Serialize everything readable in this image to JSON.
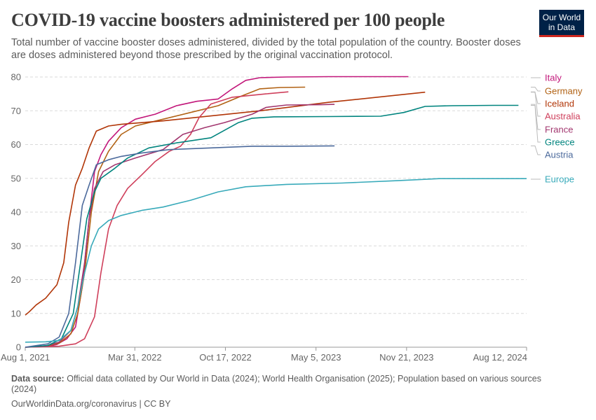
{
  "header": {
    "title": "COVID-19 vaccine boosters administered per 100 people",
    "subtitle": "Total number of vaccine booster doses administered, divided by the total population of the country. Booster doses are doses administered beyond those prescribed by the original vaccination protocol.",
    "logo_line1": "Our World",
    "logo_line2": "in Data"
  },
  "footer": {
    "source_label": "Data source:",
    "source_text": "Official data collated by Our World in Data (2024); World Health Organisation (2025); Population based on various sources (2024)",
    "url_text": "OurWorldinData.org/coronavirus | CC BY"
  },
  "chart_data": {
    "type": "line",
    "title": "COVID-19 vaccine boosters administered per 100 people",
    "ylim": [
      0,
      80
    ],
    "yticks": [
      0,
      10,
      20,
      30,
      40,
      50,
      60,
      70,
      80
    ],
    "xlim": [
      "2021-08-01",
      "2024-08-12"
    ],
    "xticks": [
      "2021-08-01",
      "2022-03-31",
      "2022-10-17",
      "2023-05-05",
      "2023-11-21",
      "2024-08-12"
    ],
    "xtick_labels": [
      "Aug 1, 2021",
      "Mar 31, 2022",
      "Oct 17, 2022",
      "May 5, 2023",
      "Nov 21, 2023",
      "Aug 12, 2024"
    ],
    "grid": "horizontal dashed",
    "legend": "right, labels at line ends",
    "series": [
      {
        "name": "Italy",
        "color": "#c2177a",
        "x": [
          "2021-08-01",
          "2021-09-20",
          "2021-10-10",
          "2021-11-01",
          "2021-11-20",
          "2021-12-05",
          "2021-12-20",
          "2022-01-01",
          "2022-01-15",
          "2022-02-01",
          "2022-03-01",
          "2022-04-01",
          "2022-05-15",
          "2022-07-01",
          "2022-08-15",
          "2022-10-01",
          "2022-11-01",
          "2022-12-01",
          "2023-01-01",
          "2023-03-01",
          "2023-06-01",
          "2023-11-25"
        ],
        "values": [
          0.0,
          0.2,
          0.8,
          2.5,
          6,
          18,
          38,
          52,
          57,
          61,
          65,
          67.5,
          69,
          71.5,
          72.8,
          73.5,
          76.5,
          79,
          79.8,
          80,
          80.1,
          80.1
        ]
      },
      {
        "name": "Germany",
        "color": "#b16214",
        "x": [
          "2021-08-01",
          "2021-09-15",
          "2021-10-15",
          "2021-11-10",
          "2021-11-25",
          "2021-12-10",
          "2021-12-25",
          "2022-01-10",
          "2022-02-01",
          "2022-03-01",
          "2022-04-01",
          "2022-06-01",
          "2022-08-01",
          "2022-10-01",
          "2022-11-15",
          "2023-01-01",
          "2023-02-15",
          "2023-04-11"
        ],
        "values": [
          0.0,
          0.3,
          1.2,
          4,
          10,
          22,
          40,
          52,
          58,
          63,
          65.5,
          67.5,
          69.5,
          71.5,
          74,
          76.5,
          76.9,
          77.0
        ]
      },
      {
        "name": "Iceland",
        "color": "#b13507",
        "x": [
          "2021-08-01",
          "2021-08-10",
          "2021-08-25",
          "2021-09-15",
          "2021-10-10",
          "2021-10-25",
          "2021-11-05",
          "2021-11-20",
          "2021-12-05",
          "2021-12-20",
          "2022-01-05",
          "2022-02-01",
          "2022-03-01",
          "2022-06-01",
          "2023-01-01",
          "2023-06-01",
          "2024-01-01"
        ],
        "values": [
          9.5,
          10.5,
          12.5,
          14.5,
          18.5,
          25,
          37,
          48,
          53,
          59,
          64,
          65.5,
          66,
          67,
          70,
          72.5,
          75.5
        ]
      },
      {
        "name": "Australia",
        "color": "#cf3f5b",
        "x": [
          "2021-08-01",
          "2021-10-15",
          "2021-11-20",
          "2021-12-10",
          "2022-01-01",
          "2022-01-15",
          "2022-02-01",
          "2022-02-20",
          "2022-03-15",
          "2022-04-15",
          "2022-05-15",
          "2022-06-15",
          "2022-07-10",
          "2022-08-01",
          "2022-08-20",
          "2022-09-15",
          "2022-11-01",
          "2023-01-15",
          "2023-03-05"
        ],
        "values": [
          0.0,
          0.3,
          1,
          2.5,
          9,
          22,
          35,
          42,
          47,
          51,
          55,
          58,
          59.5,
          63,
          68,
          72,
          74,
          75,
          75.6
        ]
      },
      {
        "name": "France",
        "color": "#a2376f",
        "x": [
          "2021-08-01",
          "2021-09-15",
          "2021-10-15",
          "2021-11-10",
          "2021-11-25",
          "2021-12-10",
          "2021-12-20",
          "2022-01-01",
          "2022-01-20",
          "2022-02-15",
          "2022-04-01",
          "2022-06-01",
          "2022-07-15",
          "2022-09-01",
          "2022-10-15",
          "2022-12-15",
          "2023-01-15",
          "2023-03-01",
          "2023-05-15",
          "2023-06-15"
        ],
        "values": [
          0.0,
          0.4,
          1.5,
          5,
          12,
          25,
          38,
          47,
          52,
          54,
          56,
          58.5,
          63,
          65,
          66.5,
          69,
          71,
          71.7,
          71.8,
          71.9
        ]
      },
      {
        "name": "Greece",
        "color": "#00847e",
        "x": [
          "2021-08-01",
          "2021-09-20",
          "2021-10-20",
          "2021-11-15",
          "2021-11-30",
          "2021-12-15",
          "2022-01-01",
          "2022-01-15",
          "2022-02-15",
          "2022-03-15",
          "2022-05-01",
          "2022-07-01",
          "2022-09-15",
          "2022-11-15",
          "2022-12-15",
          "2023-02-01",
          "2023-06-01",
          "2023-09-25",
          "2023-11-15",
          "2024-01-01",
          "2024-03-01",
          "2024-06-01",
          "2024-07-25"
        ],
        "values": [
          0.0,
          0.5,
          2.5,
          10,
          24,
          38,
          46,
          50,
          53,
          56,
          59,
          60.5,
          62,
          66.5,
          67.8,
          68.2,
          68.3,
          68.4,
          69.5,
          71.3,
          71.5,
          71.6,
          71.6
        ]
      },
      {
        "name": "Austria",
        "color": "#4c6a9c",
        "x": [
          "2021-08-01",
          "2021-09-20",
          "2021-10-15",
          "2021-11-05",
          "2021-11-20",
          "2021-12-05",
          "2021-12-20",
          "2022-01-05",
          "2022-02-01",
          "2022-03-01",
          "2022-04-15",
          "2022-06-15",
          "2022-09-15",
          "2022-12-15",
          "2023-03-01",
          "2023-06-15"
        ],
        "values": [
          0.0,
          1,
          3,
          10,
          25,
          42,
          48,
          54,
          55.5,
          56.5,
          57.5,
          58.5,
          59,
          59.5,
          59.5,
          59.6
        ]
      },
      {
        "name": "Europe",
        "color": "#38aaba",
        "x": [
          "2021-08-01",
          "2021-09-15",
          "2021-10-15",
          "2021-11-10",
          "2021-11-25",
          "2021-12-10",
          "2021-12-25",
          "2022-01-10",
          "2022-02-01",
          "2022-03-01",
          "2022-04-15",
          "2022-06-01",
          "2022-08-01",
          "2022-10-01",
          "2022-12-01",
          "2023-03-01",
          "2023-07-01",
          "2023-11-01",
          "2024-02-01",
          "2024-08-12"
        ],
        "values": [
          1.5,
          1.6,
          2,
          5,
          12,
          22,
          30,
          35,
          37.5,
          39,
          40.5,
          41.5,
          43.5,
          46,
          47.5,
          48.2,
          48.6,
          49.3,
          49.9,
          49.9
        ]
      }
    ]
  }
}
